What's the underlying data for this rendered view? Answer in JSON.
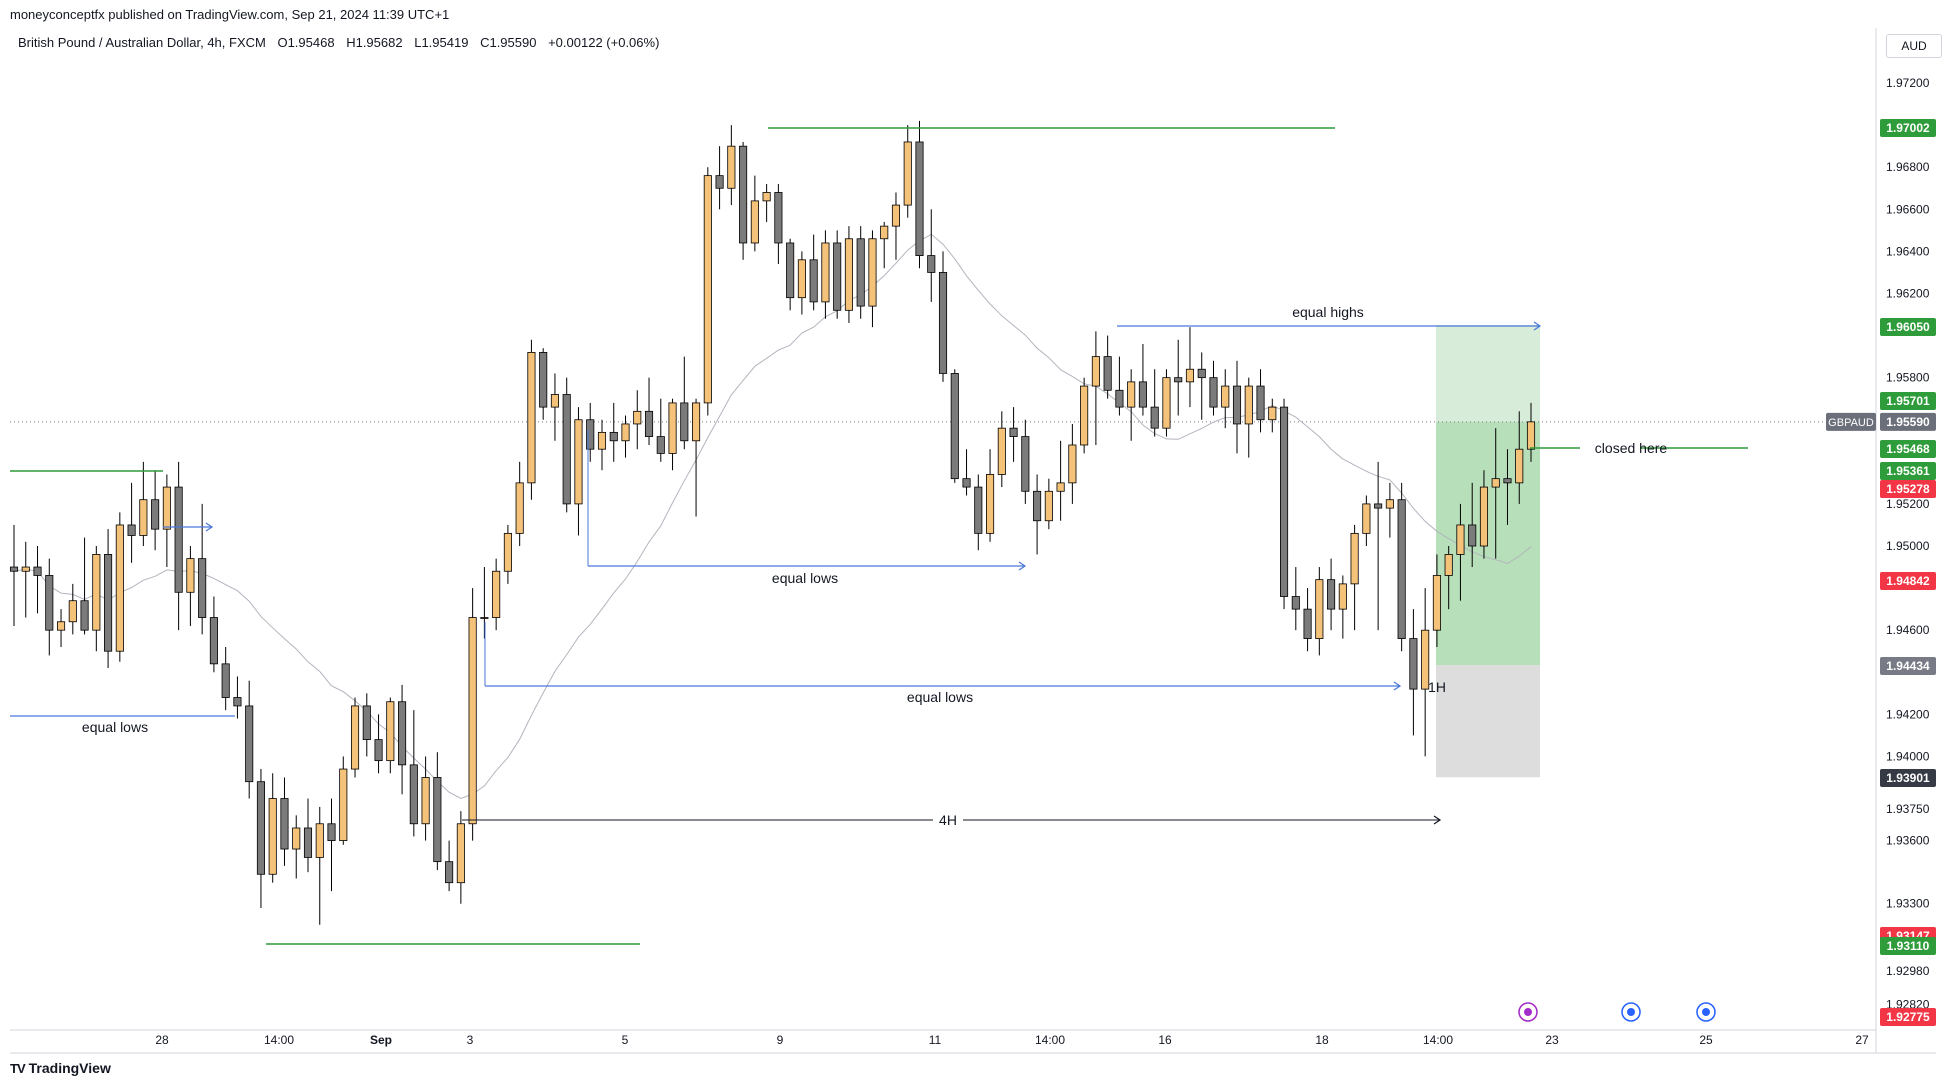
{
  "header": {
    "publisher": "moneyconceptfx published on TradingView.com, Sep 21, 2024 11:39 UTC+1",
    "symbol": "British Pound / Australian Dollar, 4h, FXCM",
    "open": "O1.95468",
    "high": "H1.95682",
    "low": "L1.95419",
    "close": "C1.95590",
    "change": "+0.00122 (+0.06%)"
  },
  "currency_button": "AUD",
  "brand": "TradingView",
  "colors": {
    "up": "#f5c27a",
    "down": "#7b7b7b",
    "green_line": "#2e9c3a",
    "blue_line": "#4a77d9",
    "sl_red": "#f23645",
    "tp_green": "#4caf50"
  },
  "chart_data": {
    "type": "candlestick",
    "symbol": "GBPAUD",
    "interval": "4h",
    "ylim": [
      1.927,
      1.973
    ],
    "y_ticks": [
      "1.97200",
      "1.96800",
      "1.96600",
      "1.96400",
      "1.96200",
      "1.95800",
      "1.95200",
      "1.95000",
      "1.94600",
      "1.94200",
      "1.94000",
      "1.93750",
      "1.93600",
      "1.93300",
      "1.92980",
      "1.92820"
    ],
    "x_ticks": [
      "28",
      "14:00",
      "Sep",
      "3",
      "5",
      "9",
      "11",
      "14:00",
      "16",
      "18",
      "14:00",
      "23",
      "25",
      "27"
    ],
    "price_labels": [
      {
        "text": "1.97002",
        "color": "#2e9c3a"
      },
      {
        "text": "1.96050",
        "color": "#2e9c3a"
      },
      {
        "text": "1.95701",
        "color": "#2e9c3a"
      },
      {
        "text": "GBPAUD",
        "color": "#6b6f7a"
      },
      {
        "text": "1.95590",
        "color": "#6b6f7a"
      },
      {
        "text": "1.95468",
        "color": "#2e9c3a"
      },
      {
        "text": "1.95361",
        "color": "#2e9c3a"
      },
      {
        "text": "1.95278",
        "color": "#f23645"
      },
      {
        "text": "1.94842",
        "color": "#f23645"
      },
      {
        "text": "1.94434",
        "color": "#787b86"
      },
      {
        "text": "1.93901",
        "color": "#363a45"
      },
      {
        "text": "1.93147",
        "color": "#f23645"
      },
      {
        "text": "1.93110",
        "color": "#2e9c3a"
      },
      {
        "text": "1.92775",
        "color": "#f23645"
      }
    ],
    "annotations": [
      "equal highs",
      "equal lows",
      "equal lows",
      "equal lows",
      "closed here",
      "4H",
      "1H"
    ],
    "candles": [
      {
        "o": 1.949,
        "h": 1.951,
        "l": 1.9462,
        "c": 1.9488
      },
      {
        "o": 1.9488,
        "h": 1.9502,
        "l": 1.9466,
        "c": 1.949
      },
      {
        "o": 1.949,
        "h": 1.95,
        "l": 1.9468,
        "c": 1.9486
      },
      {
        "o": 1.9486,
        "h": 1.9494,
        "l": 1.9448,
        "c": 1.946
      },
      {
        "o": 1.946,
        "h": 1.947,
        "l": 1.9452,
        "c": 1.9464
      },
      {
        "o": 1.9464,
        "h": 1.9482,
        "l": 1.9458,
        "c": 1.9474
      },
      {
        "o": 1.9474,
        "h": 1.9504,
        "l": 1.9458,
        "c": 1.946
      },
      {
        "o": 1.946,
        "h": 1.95,
        "l": 1.945,
        "c": 1.9496
      },
      {
        "o": 1.9496,
        "h": 1.9508,
        "l": 1.9442,
        "c": 1.945
      },
      {
        "o": 1.945,
        "h": 1.9516,
        "l": 1.9445,
        "c": 1.951
      },
      {
        "o": 1.951,
        "h": 1.953,
        "l": 1.9492,
        "c": 1.9505
      },
      {
        "o": 1.9505,
        "h": 1.954,
        "l": 1.95,
        "c": 1.9522
      },
      {
        "o": 1.9522,
        "h": 1.9536,
        "l": 1.9498,
        "c": 1.9508
      },
      {
        "o": 1.9508,
        "h": 1.9534,
        "l": 1.949,
        "c": 1.9528
      },
      {
        "o": 1.9528,
        "h": 1.954,
        "l": 1.946,
        "c": 1.9478
      },
      {
        "o": 1.9478,
        "h": 1.95,
        "l": 1.9462,
        "c": 1.9494
      },
      {
        "o": 1.9494,
        "h": 1.952,
        "l": 1.9458,
        "c": 1.9466
      },
      {
        "o": 1.9466,
        "h": 1.9476,
        "l": 1.944,
        "c": 1.9444
      },
      {
        "o": 1.9444,
        "h": 1.9452,
        "l": 1.9422,
        "c": 1.9428
      },
      {
        "o": 1.9428,
        "h": 1.9438,
        "l": 1.9418,
        "c": 1.9424
      },
      {
        "o": 1.9424,
        "h": 1.9436,
        "l": 1.938,
        "c": 1.9388
      },
      {
        "o": 1.9388,
        "h": 1.9394,
        "l": 1.9328,
        "c": 1.9344
      },
      {
        "o": 1.9344,
        "h": 1.9392,
        "l": 1.934,
        "c": 1.938
      },
      {
        "o": 1.938,
        "h": 1.939,
        "l": 1.9348,
        "c": 1.9356
      },
      {
        "o": 1.9356,
        "h": 1.9372,
        "l": 1.9342,
        "c": 1.9366
      },
      {
        "o": 1.9366,
        "h": 1.938,
        "l": 1.9345,
        "c": 1.9352
      },
      {
        "o": 1.9352,
        "h": 1.9376,
        "l": 1.932,
        "c": 1.9368
      },
      {
        "o": 1.9368,
        "h": 1.938,
        "l": 1.9336,
        "c": 1.936
      },
      {
        "o": 1.936,
        "h": 1.94,
        "l": 1.9358,
        "c": 1.9394
      },
      {
        "o": 1.9394,
        "h": 1.9428,
        "l": 1.939,
        "c": 1.9424
      },
      {
        "o": 1.9424,
        "h": 1.943,
        "l": 1.94,
        "c": 1.9408
      },
      {
        "o": 1.9408,
        "h": 1.942,
        "l": 1.9392,
        "c": 1.9398
      },
      {
        "o": 1.9398,
        "h": 1.9428,
        "l": 1.9392,
        "c": 1.9426
      },
      {
        "o": 1.9426,
        "h": 1.9434,
        "l": 1.9382,
        "c": 1.9396
      },
      {
        "o": 1.9396,
        "h": 1.9422,
        "l": 1.9362,
        "c": 1.9368
      },
      {
        "o": 1.9368,
        "h": 1.94,
        "l": 1.936,
        "c": 1.939
      },
      {
        "o": 1.939,
        "h": 1.9402,
        "l": 1.9346,
        "c": 1.935
      },
      {
        "o": 1.935,
        "h": 1.936,
        "l": 1.9336,
        "c": 1.934
      },
      {
        "o": 1.934,
        "h": 1.9374,
        "l": 1.933,
        "c": 1.9368
      },
      {
        "o": 1.9368,
        "h": 1.948,
        "l": 1.936,
        "c": 1.9466
      },
      {
        "o": 1.9466,
        "h": 1.949,
        "l": 1.9456,
        "c": 1.9466
      },
      {
        "o": 1.9466,
        "h": 1.9494,
        "l": 1.946,
        "c": 1.9488
      },
      {
        "o": 1.9488,
        "h": 1.951,
        "l": 1.9482,
        "c": 1.9506
      },
      {
        "o": 1.9506,
        "h": 1.954,
        "l": 1.95,
        "c": 1.953
      },
      {
        "o": 1.953,
        "h": 1.9598,
        "l": 1.9522,
        "c": 1.9592
      },
      {
        "o": 1.9592,
        "h": 1.9594,
        "l": 1.956,
        "c": 1.9566
      },
      {
        "o": 1.9566,
        "h": 1.9582,
        "l": 1.955,
        "c": 1.9572
      },
      {
        "o": 1.9572,
        "h": 1.958,
        "l": 1.9516,
        "c": 1.952
      },
      {
        "o": 1.952,
        "h": 1.9566,
        "l": 1.9505,
        "c": 1.956
      },
      {
        "o": 1.956,
        "h": 1.9568,
        "l": 1.954,
        "c": 1.9546
      },
      {
        "o": 1.9546,
        "h": 1.956,
        "l": 1.9536,
        "c": 1.9554
      },
      {
        "o": 1.9554,
        "h": 1.9568,
        "l": 1.954,
        "c": 1.955
      },
      {
        "o": 1.955,
        "h": 1.9562,
        "l": 1.9542,
        "c": 1.9558
      },
      {
        "o": 1.9558,
        "h": 1.9574,
        "l": 1.9546,
        "c": 1.9564
      },
      {
        "o": 1.9564,
        "h": 1.958,
        "l": 1.9548,
        "c": 1.9552
      },
      {
        "o": 1.9552,
        "h": 1.957,
        "l": 1.954,
        "c": 1.9544
      },
      {
        "o": 1.9544,
        "h": 1.957,
        "l": 1.9536,
        "c": 1.9568
      },
      {
        "o": 1.9568,
        "h": 1.959,
        "l": 1.9546,
        "c": 1.955
      },
      {
        "o": 1.955,
        "h": 1.957,
        "l": 1.9514,
        "c": 1.9568
      },
      {
        "o": 1.9568,
        "h": 1.968,
        "l": 1.9562,
        "c": 1.9676
      },
      {
        "o": 1.9676,
        "h": 1.969,
        "l": 1.966,
        "c": 1.967
      },
      {
        "o": 1.967,
        "h": 1.97,
        "l": 1.9662,
        "c": 1.969
      },
      {
        "o": 1.969,
        "h": 1.9692,
        "l": 1.9636,
        "c": 1.9644
      },
      {
        "o": 1.9644,
        "h": 1.9676,
        "l": 1.964,
        "c": 1.9664
      },
      {
        "o": 1.9664,
        "h": 1.9672,
        "l": 1.9654,
        "c": 1.9668
      },
      {
        "o": 1.9668,
        "h": 1.9672,
        "l": 1.9634,
        "c": 1.9644
      },
      {
        "o": 1.9644,
        "h": 1.9646,
        "l": 1.9612,
        "c": 1.9618
      },
      {
        "o": 1.9618,
        "h": 1.964,
        "l": 1.961,
        "c": 1.9636
      },
      {
        "o": 1.9636,
        "h": 1.9648,
        "l": 1.9612,
        "c": 1.9616
      },
      {
        "o": 1.9616,
        "h": 1.965,
        "l": 1.9608,
        "c": 1.9644
      },
      {
        "o": 1.9644,
        "h": 1.965,
        "l": 1.9608,
        "c": 1.9612
      },
      {
        "o": 1.9612,
        "h": 1.9652,
        "l": 1.9606,
        "c": 1.9646
      },
      {
        "o": 1.9646,
        "h": 1.9652,
        "l": 1.9608,
        "c": 1.9614
      },
      {
        "o": 1.9614,
        "h": 1.965,
        "l": 1.9604,
        "c": 1.9646
      },
      {
        "o": 1.9646,
        "h": 1.9654,
        "l": 1.9632,
        "c": 1.9652
      },
      {
        "o": 1.9652,
        "h": 1.9668,
        "l": 1.9636,
        "c": 1.9662
      },
      {
        "o": 1.9662,
        "h": 1.97,
        "l": 1.9656,
        "c": 1.9692
      },
      {
        "o": 1.9692,
        "h": 1.9702,
        "l": 1.9632,
        "c": 1.9638
      },
      {
        "o": 1.9638,
        "h": 1.966,
        "l": 1.9616,
        "c": 1.963
      },
      {
        "o": 1.963,
        "h": 1.964,
        "l": 1.9578,
        "c": 1.9582
      },
      {
        "o": 1.9582,
        "h": 1.9584,
        "l": 1.953,
        "c": 1.9532
      },
      {
        "o": 1.9532,
        "h": 1.9546,
        "l": 1.9524,
        "c": 1.9528
      },
      {
        "o": 1.9528,
        "h": 1.9534,
        "l": 1.9498,
        "c": 1.9506
      },
      {
        "o": 1.9506,
        "h": 1.9546,
        "l": 1.9502,
        "c": 1.9534
      },
      {
        "o": 1.9534,
        "h": 1.9564,
        "l": 1.9528,
        "c": 1.9556
      },
      {
        "o": 1.9556,
        "h": 1.9566,
        "l": 1.954,
        "c": 1.9552
      },
      {
        "o": 1.9552,
        "h": 1.956,
        "l": 1.952,
        "c": 1.9526
      },
      {
        "o": 1.9526,
        "h": 1.9534,
        "l": 1.9496,
        "c": 1.9512
      },
      {
        "o": 1.9512,
        "h": 1.9532,
        "l": 1.9508,
        "c": 1.9526
      },
      {
        "o": 1.9526,
        "h": 1.955,
        "l": 1.9512,
        "c": 1.953
      },
      {
        "o": 1.953,
        "h": 1.9558,
        "l": 1.952,
        "c": 1.9548
      },
      {
        "o": 1.9548,
        "h": 1.958,
        "l": 1.9544,
        "c": 1.9576
      },
      {
        "o": 1.9576,
        "h": 1.9602,
        "l": 1.9548,
        "c": 1.959
      },
      {
        "o": 1.959,
        "h": 1.96,
        "l": 1.957,
        "c": 1.9574
      },
      {
        "o": 1.9574,
        "h": 1.959,
        "l": 1.9562,
        "c": 1.9566
      },
      {
        "o": 1.9566,
        "h": 1.9584,
        "l": 1.955,
        "c": 1.9578
      },
      {
        "o": 1.9578,
        "h": 1.9596,
        "l": 1.9562,
        "c": 1.9566
      },
      {
        "o": 1.9566,
        "h": 1.9584,
        "l": 1.9552,
        "c": 1.9556
      },
      {
        "o": 1.9556,
        "h": 1.9584,
        "l": 1.9552,
        "c": 1.958
      },
      {
        "o": 1.958,
        "h": 1.9598,
        "l": 1.9562,
        "c": 1.9578
      },
      {
        "o": 1.9578,
        "h": 1.9604,
        "l": 1.9566,
        "c": 1.9584
      },
      {
        "o": 1.9584,
        "h": 1.9592,
        "l": 1.956,
        "c": 1.958
      },
      {
        "o": 1.958,
        "h": 1.9588,
        "l": 1.9562,
        "c": 1.9566
      },
      {
        "o": 1.9566,
        "h": 1.9584,
        "l": 1.9556,
        "c": 1.9576
      },
      {
        "o": 1.9576,
        "h": 1.9588,
        "l": 1.9544,
        "c": 1.9558
      },
      {
        "o": 1.9558,
        "h": 1.958,
        "l": 1.9542,
        "c": 1.9576
      },
      {
        "o": 1.9576,
        "h": 1.9584,
        "l": 1.9554,
        "c": 1.956
      },
      {
        "o": 1.956,
        "h": 1.957,
        "l": 1.9554,
        "c": 1.9566
      },
      {
        "o": 1.9566,
        "h": 1.957,
        "l": 1.947,
        "c": 1.9476
      },
      {
        "o": 1.9476,
        "h": 1.949,
        "l": 1.946,
        "c": 1.947
      },
      {
        "o": 1.947,
        "h": 1.948,
        "l": 1.945,
        "c": 1.9456
      },
      {
        "o": 1.9456,
        "h": 1.949,
        "l": 1.9448,
        "c": 1.9484
      },
      {
        "o": 1.9484,
        "h": 1.9494,
        "l": 1.946,
        "c": 1.947
      },
      {
        "o": 1.947,
        "h": 1.9486,
        "l": 1.9456,
        "c": 1.9482
      },
      {
        "o": 1.9482,
        "h": 1.951,
        "l": 1.946,
        "c": 1.9506
      },
      {
        "o": 1.9506,
        "h": 1.9524,
        "l": 1.95,
        "c": 1.952
      },
      {
        "o": 1.952,
        "h": 1.954,
        "l": 1.946,
        "c": 1.9518
      },
      {
        "o": 1.9518,
        "h": 1.953,
        "l": 1.9504,
        "c": 1.9522
      },
      {
        "o": 1.9522,
        "h": 1.953,
        "l": 1.945,
        "c": 1.9456
      },
      {
        "o": 1.9456,
        "h": 1.947,
        "l": 1.941,
        "c": 1.9432
      },
      {
        "o": 1.9432,
        "h": 1.948,
        "l": 1.94,
        "c": 1.946
      },
      {
        "o": 1.946,
        "h": 1.9496,
        "l": 1.9452,
        "c": 1.9486
      },
      {
        "o": 1.9486,
        "h": 1.95,
        "l": 1.947,
        "c": 1.9496
      },
      {
        "o": 1.9496,
        "h": 1.952,
        "l": 1.9474,
        "c": 1.951
      },
      {
        "o": 1.951,
        "h": 1.953,
        "l": 1.949,
        "c": 1.95
      },
      {
        "o": 1.95,
        "h": 1.9536,
        "l": 1.9494,
        "c": 1.9528
      },
      {
        "o": 1.9528,
        "h": 1.9556,
        "l": 1.9494,
        "c": 1.9532
      },
      {
        "o": 1.9532,
        "h": 1.9546,
        "l": 1.951,
        "c": 1.953
      },
      {
        "o": 1.953,
        "h": 1.9564,
        "l": 1.952,
        "c": 1.9546
      },
      {
        "o": 1.9546,
        "h": 1.9568,
        "l": 1.954,
        "c": 1.9559
      }
    ]
  }
}
